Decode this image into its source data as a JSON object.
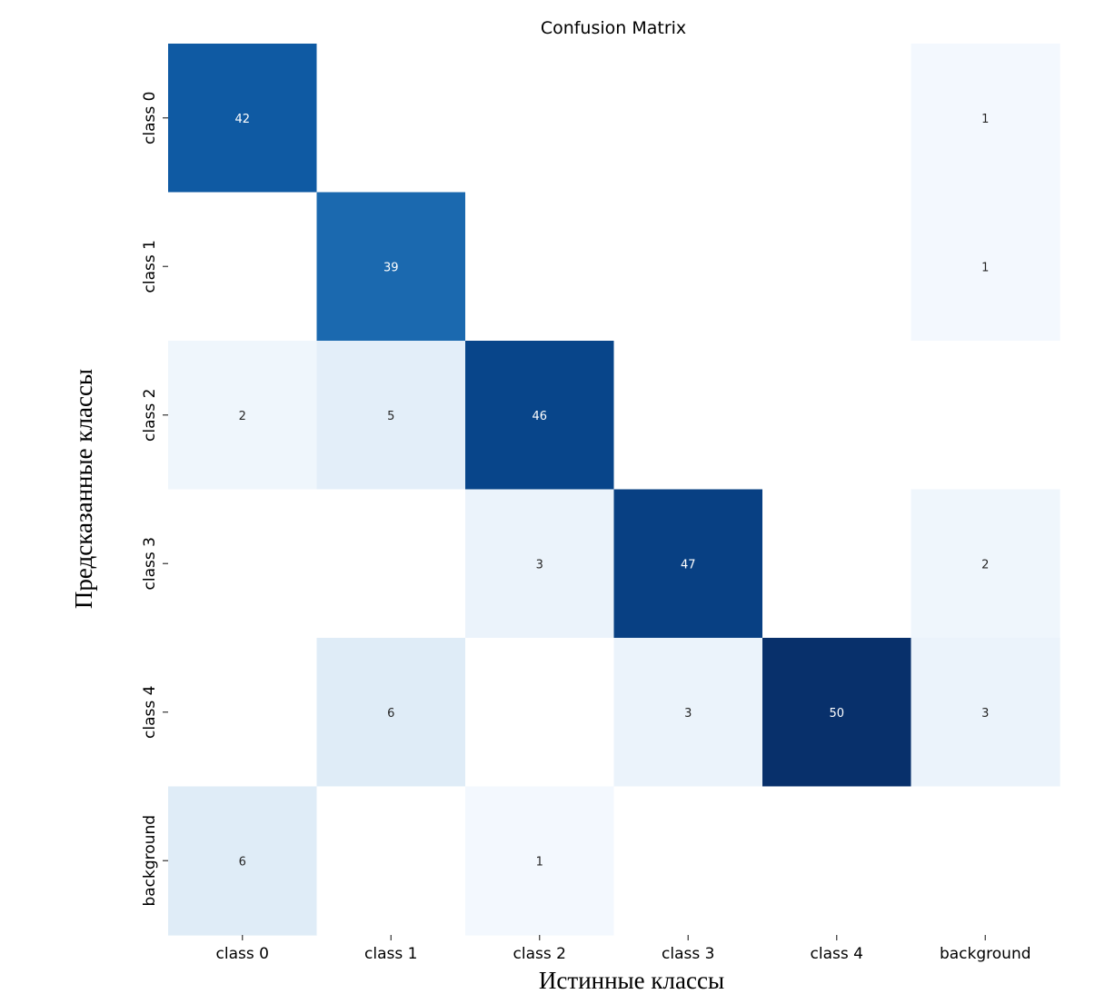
{
  "chart_data": {
    "type": "heatmap",
    "title": "Confusion Matrix",
    "xlabel": "Истинные классы",
    "ylabel": "Предсказанные классы",
    "x_categories": [
      "class 0",
      "class 1",
      "class 2",
      "class 3",
      "class 4",
      "background"
    ],
    "y_categories": [
      "class 0",
      "class 1",
      "class 2",
      "class 3",
      "class 4",
      "background"
    ],
    "values": [
      [
        42,
        0,
        0,
        0,
        0,
        1
      ],
      [
        0,
        39,
        0,
        0,
        0,
        1
      ],
      [
        2,
        5,
        46,
        0,
        0,
        0
      ],
      [
        0,
        0,
        3,
        47,
        0,
        2
      ],
      [
        0,
        6,
        0,
        3,
        50,
        3
      ],
      [
        6,
        0,
        1,
        0,
        0,
        0
      ]
    ],
    "hide_zero_values": true,
    "colormap": "Blues",
    "colormap_stops": [
      "#f7fbff",
      "#deebf7",
      "#c6dbef",
      "#9ecae1",
      "#6baed6",
      "#4292c6",
      "#2171b5",
      "#08519c",
      "#08306b"
    ],
    "zero_color": "#ffffff",
    "text_color_light": "#ffffff",
    "text_color_dark": "#262626"
  }
}
